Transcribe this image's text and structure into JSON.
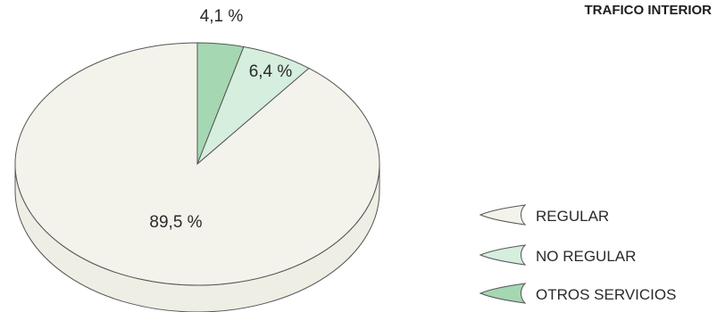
{
  "chart_data": {
    "type": "pie",
    "title": "TRAFICO INTERIOR",
    "style": "3d",
    "legend_position": "bottom-right",
    "slices": [
      {
        "label": "REGULAR",
        "value": 89.5,
        "display": "89,5 %",
        "color": "#f3f3ec"
      },
      {
        "label": "NO REGULAR",
        "value": 6.4,
        "display": "6,4 %",
        "color": "#d5eedd"
      },
      {
        "label": "OTROS SERVICIOS",
        "value": 4.1,
        "display": "4,1 %",
        "color": "#a4d7b2"
      }
    ]
  }
}
